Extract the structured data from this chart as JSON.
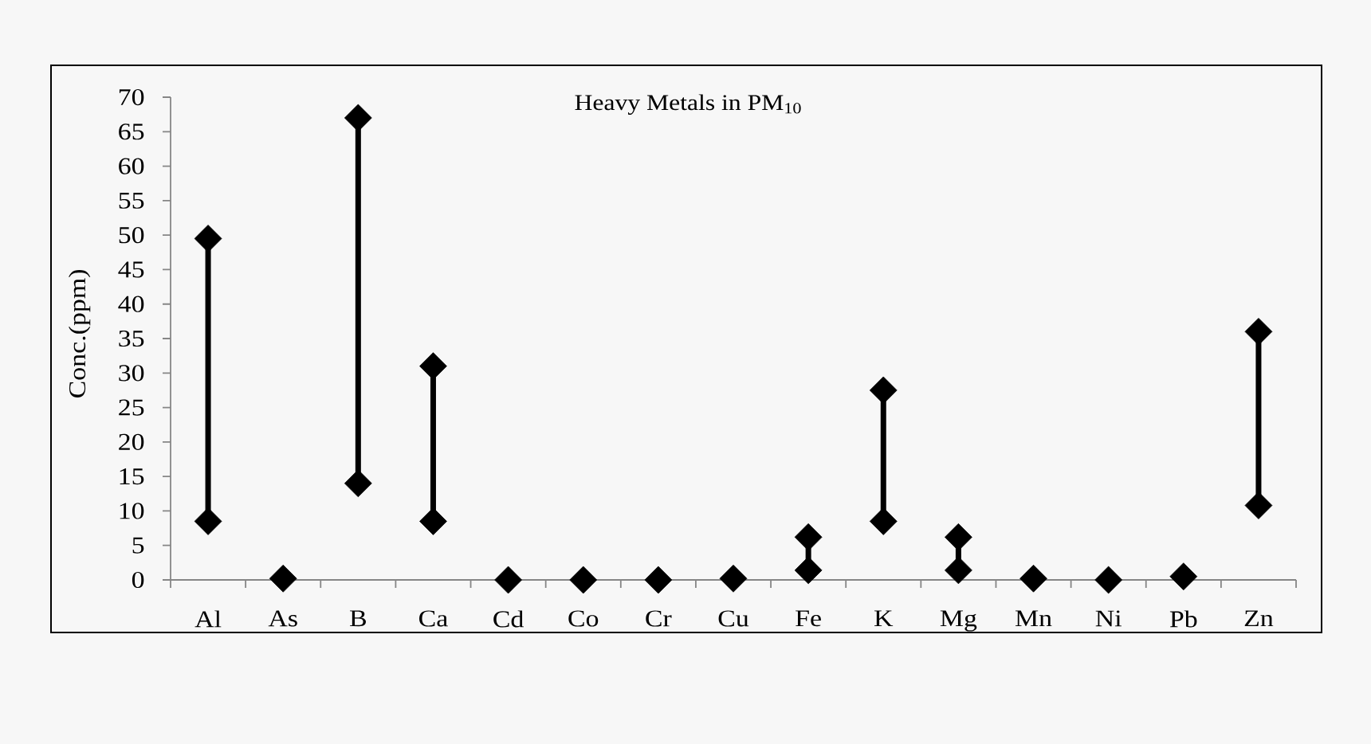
{
  "chart_data": {
    "type": "line",
    "title": "Heavy Metals in PM$_{10}$",
    "ylabel": "Conc.(ppm)",
    "categories": [
      "Al",
      "As",
      "B",
      "Ca",
      "Cd",
      "Co",
      "Cr",
      "Cu",
      "Fe",
      "K",
      "Mg",
      "Mn",
      "Ni",
      "Pb",
      "Zn"
    ],
    "ylim": [
      0,
      70
    ],
    "yticks": [
      0,
      5,
      10,
      15,
      20,
      25,
      30,
      35,
      40,
      45,
      50,
      55,
      60,
      65,
      70
    ],
    "marker": "diamond",
    "line_style": "solid",
    "series": [
      {
        "color": "#000000",
        "x": [
          "Al",
          "Al"
        ],
        "values": [
          8.5,
          49.5
        ]
      },
      {
        "color": "#000000",
        "x": [
          "As"
        ],
        "values": [
          0.2
        ]
      },
      {
        "color": "#000000",
        "x": [
          "B",
          "B"
        ],
        "values": [
          14,
          67
        ]
      },
      {
        "color": "#000000",
        "x": [
          "Ca",
          "Ca"
        ],
        "values": [
          8.5,
          31
        ]
      },
      {
        "color": "#000000",
        "x": [
          "Cd"
        ],
        "values": [
          0
        ]
      },
      {
        "color": "#000000",
        "x": [
          "Co"
        ],
        "values": [
          0
        ]
      },
      {
        "color": "#000000",
        "x": [
          "Cr"
        ],
        "values": [
          0
        ]
      },
      {
        "color": "#000000",
        "x": [
          "Cu"
        ],
        "values": [
          0.2
        ]
      },
      {
        "color": "#000000",
        "x": [
          "Fe",
          "Fe"
        ],
        "values": [
          1.4,
          6.2
        ]
      },
      {
        "color": "#000000",
        "x": [
          "K",
          "K"
        ],
        "values": [
          8.5,
          27.5
        ]
      },
      {
        "color": "#000000",
        "x": [
          "Mg",
          "Mg"
        ],
        "values": [
          1.4,
          6.2
        ]
      },
      {
        "color": "#000000",
        "x": [
          "Mn"
        ],
        "values": [
          0.2
        ]
      },
      {
        "color": "#000000",
        "x": [
          "Ni"
        ],
        "values": [
          0
        ]
      },
      {
        "color": "#000000",
        "x": [
          "Pb"
        ],
        "values": [
          0.5
        ]
      },
      {
        "color": "#000000",
        "x": [
          "Zn",
          "Zn"
        ],
        "values": [
          10.8,
          36
        ]
      }
    ]
  }
}
